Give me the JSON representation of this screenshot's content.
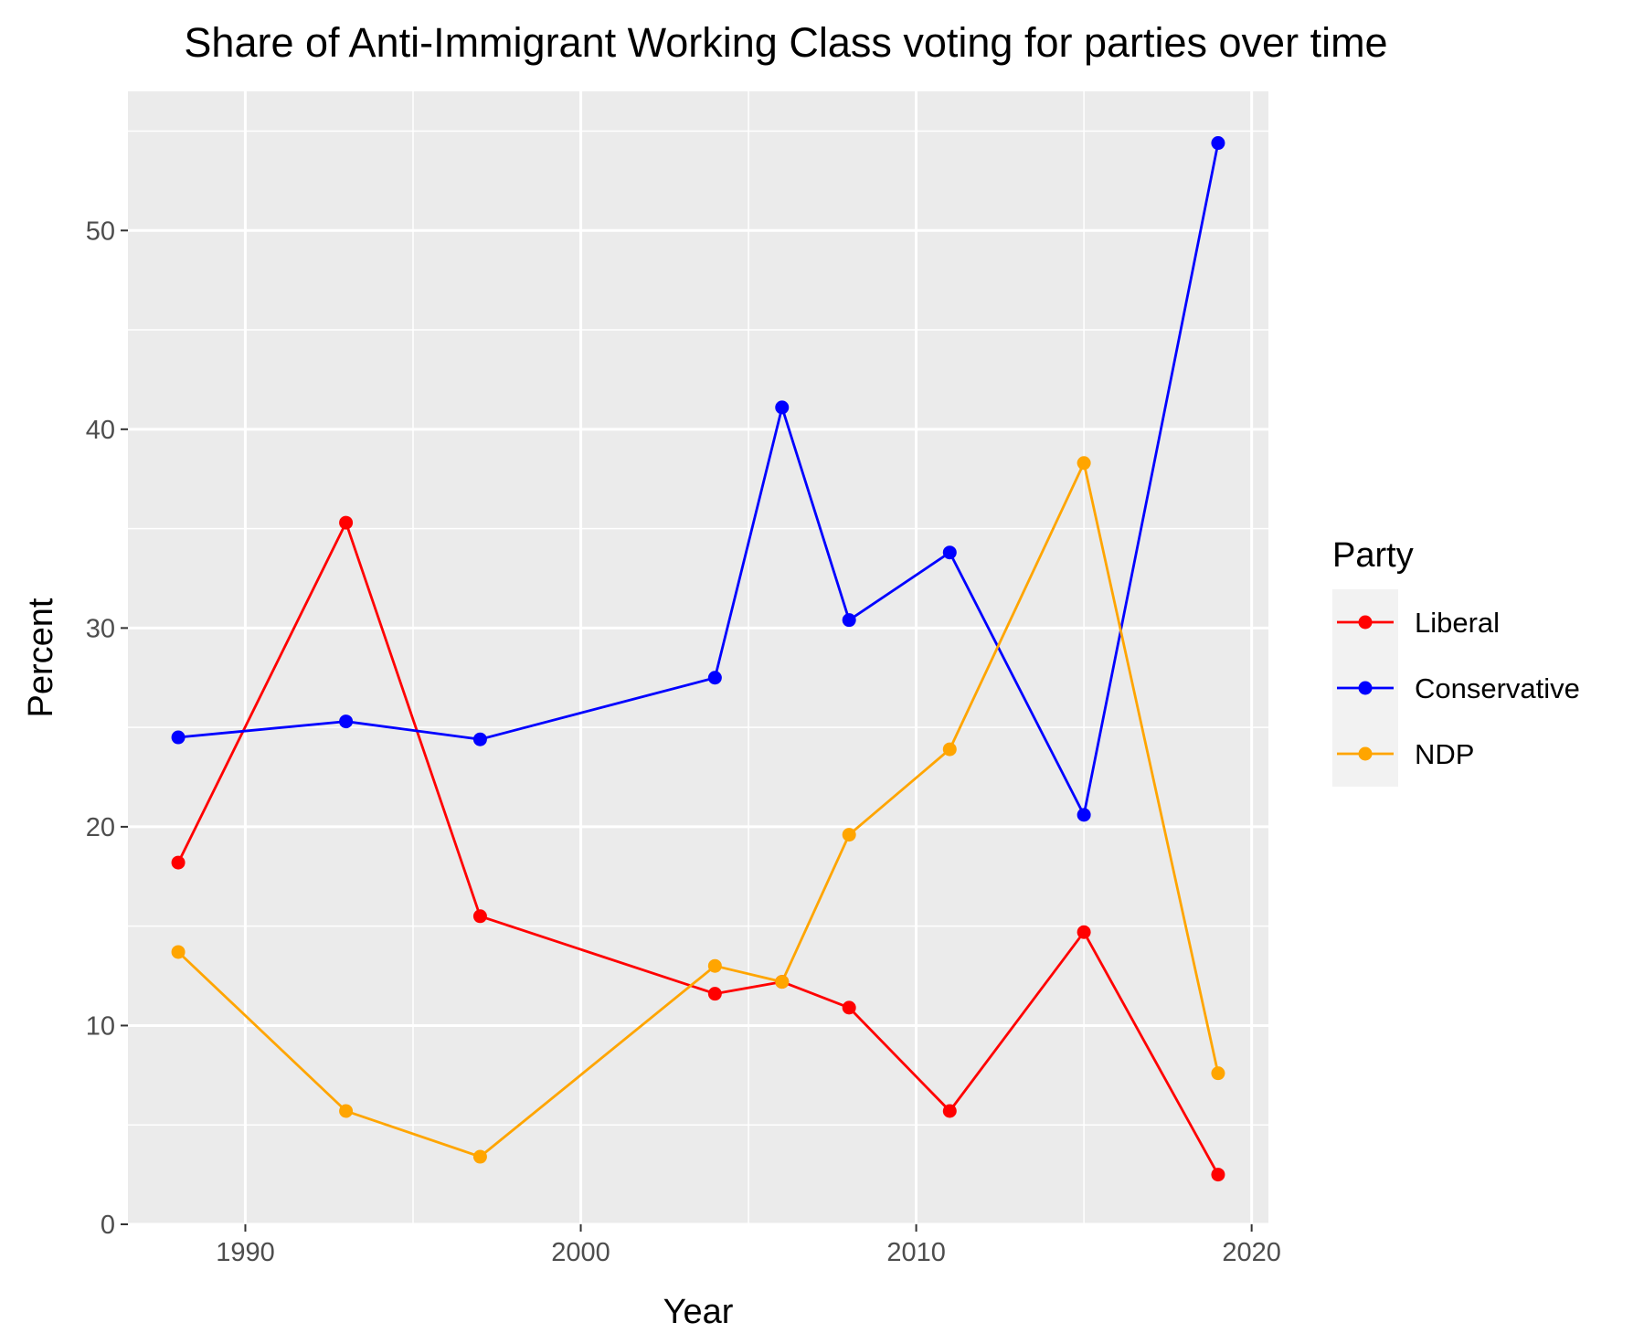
{
  "chart_data": {
    "type": "line",
    "title": "Share of Anti-Immigrant Working Class voting for parties over time",
    "xlabel": "Year",
    "ylabel": "Percent",
    "xlim": [
      1986.5,
      2020.5
    ],
    "ylim": [
      0,
      57
    ],
    "x_ticks": [
      1990,
      2000,
      2010,
      2020
    ],
    "y_ticks": [
      0,
      10,
      20,
      30,
      40,
      50
    ],
    "grid": true,
    "legend": {
      "title": "Party",
      "position": "right"
    },
    "x": [
      1988,
      1993,
      1997,
      2004,
      2006,
      2008,
      2011,
      2015,
      2019
    ],
    "series": [
      {
        "name": "Liberal",
        "color": "#ff0000",
        "values": [
          18.2,
          35.3,
          15.5,
          11.6,
          12.2,
          10.9,
          5.7,
          14.7,
          2.5
        ]
      },
      {
        "name": "Conservative",
        "color": "#0000ff",
        "values": [
          24.5,
          25.3,
          24.4,
          27.5,
          41.1,
          30.4,
          33.8,
          20.6,
          54.4
        ]
      },
      {
        "name": "NDP",
        "color": "#ffa500",
        "values": [
          13.7,
          5.7,
          3.4,
          13.0,
          12.2,
          19.6,
          23.9,
          38.3,
          7.6
        ]
      }
    ]
  }
}
